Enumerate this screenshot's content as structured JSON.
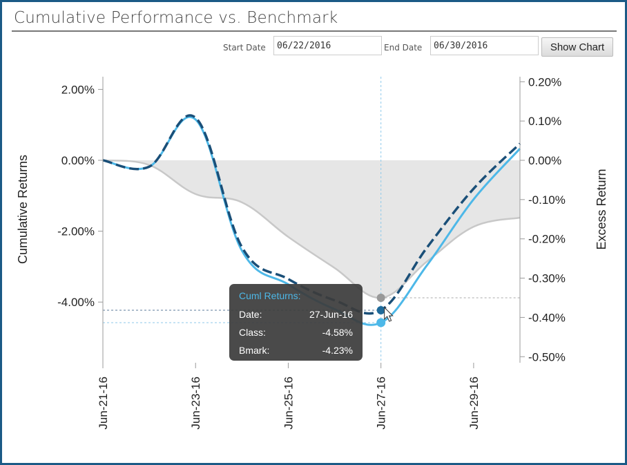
{
  "title": "Cumulative Performance vs. Benchmark",
  "controls": {
    "start_label": "Start Date",
    "start_value": "06/22/2016",
    "end_label": "End Date",
    "end_value": "06/30/2016",
    "button": "Show Chart"
  },
  "tooltip": {
    "heading": "Cuml Returns:",
    "date_label": "Date:",
    "date_value": "27-Jun-16",
    "class_label": "Class:",
    "class_value": "-4.58%",
    "bmark_label": "Bmark:",
    "bmark_value": "-4.23%"
  },
  "colors": {
    "frame": "#1b5a86",
    "class": "#4db8e8",
    "bmark": "#1a4f78",
    "excess": "#e6e6e6"
  },
  "chart_data": {
    "type": "line",
    "x": [
      "Jun-21-16",
      "Jun-22-16",
      "Jun-23-16",
      "Jun-24-16",
      "Jun-25-16",
      "Jun-26-16",
      "Jun-27-16",
      "Jun-28-16",
      "Jun-29-16",
      "Jun-30-16"
    ],
    "x_tick_labels": [
      "Jun-21-16",
      "Jun-23-16",
      "Jun-25-16",
      "Jun-27-16",
      "Jun-29-16"
    ],
    "ylabel_left": "Cumulative Returns",
    "ylabel_right": "Excess Return",
    "ylim_left": [
      -5.7,
      2.35
    ],
    "ylim_right": [
      -0.5,
      0.2
    ],
    "yticks_left": [
      "2.00%",
      "0.00%",
      "-2.00%",
      "-4.00%"
    ],
    "yticks_right": [
      "0.20%",
      "0.10%",
      "0.00%",
      "-0.10%",
      "-0.20%",
      "-0.30%",
      "-0.40%",
      "-0.50%"
    ],
    "series": [
      {
        "key": "class",
        "name": "Class",
        "axis": "left",
        "style": "solid",
        "values": [
          0,
          -0.18,
          1.15,
          -2.55,
          -3.5,
          -4.2,
          -4.58,
          -2.95,
          -1.1,
          0.33
        ]
      },
      {
        "key": "bmark",
        "name": "Bmark",
        "axis": "left",
        "style": "dashed",
        "values": [
          0,
          -0.18,
          1.2,
          -2.45,
          -3.35,
          -3.95,
          -4.23,
          -2.45,
          -0.8,
          0.47
        ]
      },
      {
        "key": "excess",
        "axis": "right",
        "style": "area",
        "values": [
          0,
          -0.012,
          -0.086,
          -0.107,
          -0.195,
          -0.274,
          -0.35,
          -0.257,
          -0.169,
          -0.146
        ]
      }
    ],
    "highlight_index": 6,
    "grid": false
  }
}
